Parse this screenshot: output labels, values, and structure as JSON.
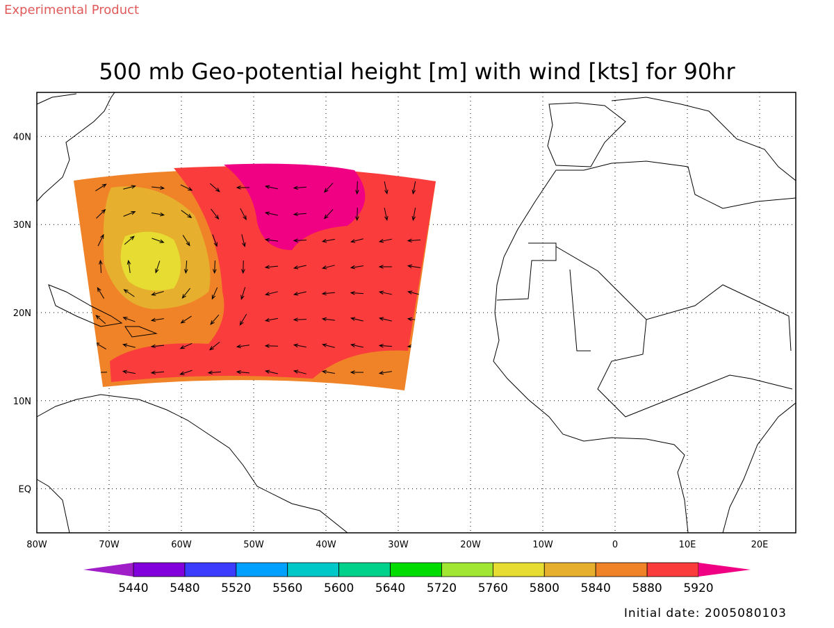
{
  "header": {
    "badge": "Experimental Product",
    "title": "500 mb Geo-potential height [m] with wind [kts] for 90hr"
  },
  "map": {
    "xlim": [
      -80,
      25
    ],
    "ylim": [
      -5,
      45
    ],
    "xticks": [
      {
        "value": -80,
        "label": "80W"
      },
      {
        "value": -70,
        "label": "70W"
      },
      {
        "value": -60,
        "label": "60W"
      },
      {
        "value": -50,
        "label": "50W"
      },
      {
        "value": -40,
        "label": "40W"
      },
      {
        "value": -30,
        "label": "30W"
      },
      {
        "value": -20,
        "label": "20W"
      },
      {
        "value": -10,
        "label": "10W"
      },
      {
        "value": 0,
        "label": "0"
      },
      {
        "value": 10,
        "label": "10E"
      },
      {
        "value": 20,
        "label": "20E"
      }
    ],
    "yticks": [
      {
        "value": 0,
        "label": "EQ"
      },
      {
        "value": 10,
        "label": "10N"
      },
      {
        "value": 20,
        "label": "20N"
      },
      {
        "value": 30,
        "label": "30N"
      },
      {
        "value": 40,
        "label": "40N"
      }
    ],
    "grid": true
  },
  "colorbar": {
    "levels": [
      5440,
      5480,
      5520,
      5560,
      5600,
      5640,
      5720,
      5760,
      5800,
      5840,
      5880,
      5920
    ],
    "colors": [
      "#a01ec8",
      "#8200dc",
      "#3c3cff",
      "#00a0ff",
      "#00c8c8",
      "#00d28c",
      "#00dc00",
      "#a0e632",
      "#e6dc32",
      "#e6af2d",
      "#f08228",
      "#fa3c3c",
      "#f00082"
    ]
  },
  "footer": {
    "initial_date": "Initial date: 2005080103"
  }
}
